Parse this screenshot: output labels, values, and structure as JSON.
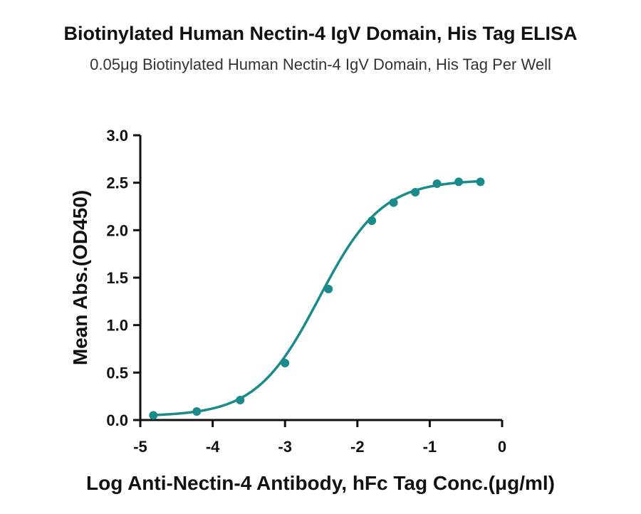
{
  "chart_data": {
    "type": "scatter",
    "title": "Biotinylated Human Nectin-4 IgV Domain, His Tag ELISA",
    "subtitle": "0.05μg Biotinylated Human Nectin-4 IgV Domain, His Tag Per Well",
    "xlabel": "Log  Anti-Nectin-4 Antibody, hFc Tag Conc.(μg/ml)",
    "ylabel": "Mean Abs.(OD450)",
    "xlim": [
      -5,
      0
    ],
    "ylim": [
      0,
      3.0
    ],
    "xticks": [
      "-5",
      "-4",
      "-3",
      "-2",
      "-1",
      "0"
    ],
    "yticks": [
      "0.0",
      "0.5",
      "1.0",
      "1.5",
      "2.0",
      "2.5",
      "3.0"
    ],
    "series": [
      {
        "color": "#1a8a8a",
        "x": [
          -4.82,
          -4.22,
          -3.62,
          -3.0,
          -2.4,
          -1.8,
          -1.5,
          -1.2,
          -0.9,
          -0.6,
          -0.3
        ],
        "y": [
          0.05,
          0.09,
          0.21,
          0.6,
          1.38,
          2.1,
          2.29,
          2.4,
          2.49,
          2.51,
          2.51
        ]
      }
    ],
    "fit_curve": {
      "bottom": 0.04,
      "top": 2.53,
      "logEC50": -2.53,
      "hill": 1.0
    },
    "grid": false,
    "legend": "none"
  }
}
